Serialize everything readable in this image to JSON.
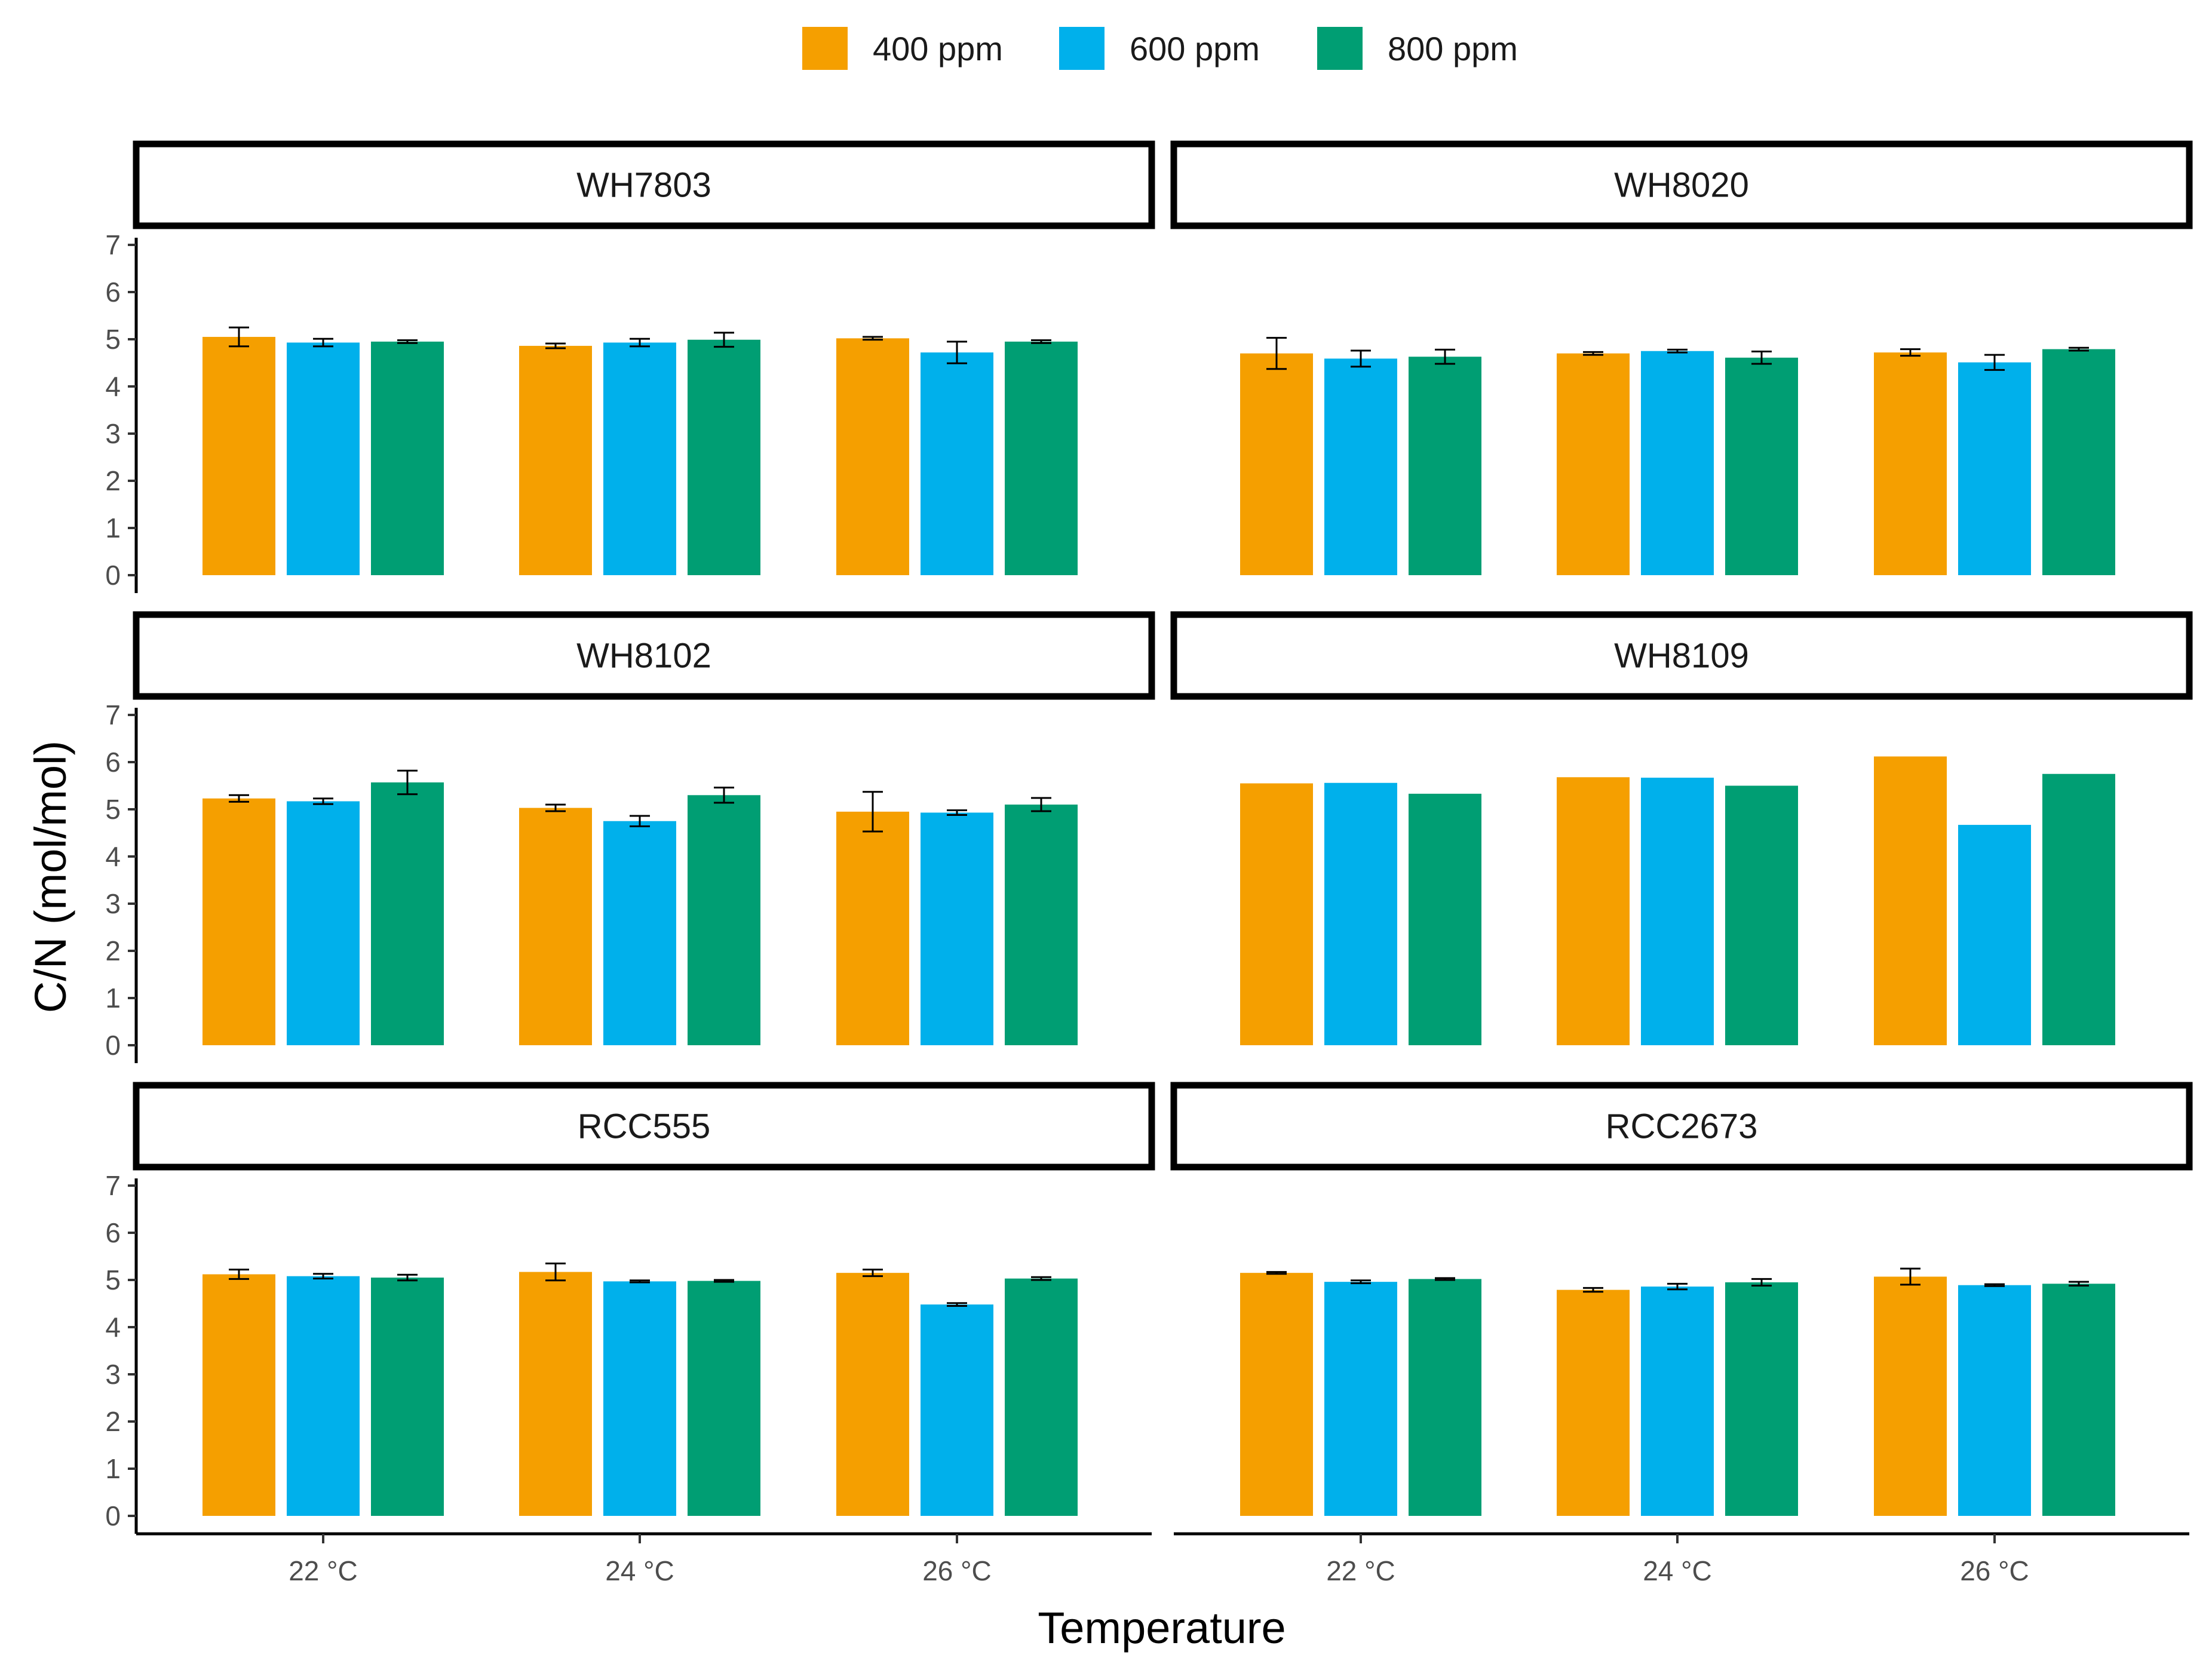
{
  "chart_data": {
    "type": "bar",
    "xlabel": "Temperature",
    "ylabel": "C/N (mol/mol)",
    "ylim": [
      0,
      7
    ],
    "yticks": [
      "0",
      "1",
      "2",
      "3",
      "4",
      "5",
      "6",
      "7"
    ],
    "categories": [
      "22 °C",
      "24 °C",
      "26 °C"
    ],
    "legend": {
      "position": "top",
      "entries": [
        "400 ppm",
        "600 ppm",
        "800 ppm"
      ]
    },
    "colors": {
      "400 ppm": "#F59F00",
      "600 ppm": "#00B0EB",
      "800 ppm": "#009E73"
    },
    "facets": [
      {
        "title": "WH7803",
        "series": [
          {
            "name": "400 ppm",
            "values": [
              5.05,
              4.86,
              5.02
            ],
            "errors": [
              0.2,
              0.05,
              0.03
            ]
          },
          {
            "name": "600 ppm",
            "values": [
              4.93,
              4.93,
              4.72
            ],
            "errors": [
              0.08,
              0.08,
              0.23
            ]
          },
          {
            "name": "800 ppm",
            "values": [
              4.95,
              4.99,
              4.95
            ],
            "errors": [
              0.03,
              0.15,
              0.03
            ]
          }
        ]
      },
      {
        "title": "WH8020",
        "series": [
          {
            "name": "400 ppm",
            "values": [
              4.7,
              4.7,
              4.72
            ],
            "errors": [
              0.33,
              0.03,
              0.07
            ]
          },
          {
            "name": "600 ppm",
            "values": [
              4.59,
              4.75,
              4.51
            ],
            "errors": [
              0.17,
              0.03,
              0.16
            ]
          },
          {
            "name": "800 ppm",
            "values": [
              4.63,
              4.61,
              4.79
            ],
            "errors": [
              0.15,
              0.13,
              0.03
            ]
          }
        ]
      },
      {
        "title": "WH8102",
        "series": [
          {
            "name": "400 ppm",
            "values": [
              5.23,
              5.03,
              4.95
            ],
            "errors": [
              0.07,
              0.07,
              0.42
            ]
          },
          {
            "name": "600 ppm",
            "values": [
              5.17,
              4.75,
              4.93
            ],
            "errors": [
              0.06,
              0.11,
              0.05
            ]
          },
          {
            "name": "800 ppm",
            "values": [
              5.57,
              5.3,
              5.1
            ],
            "errors": [
              0.25,
              0.16,
              0.14
            ]
          }
        ]
      },
      {
        "title": "WH8109",
        "series": [
          {
            "name": "400 ppm",
            "values": [
              5.55,
              5.68,
              6.12
            ],
            "errors": [
              0,
              0,
              0
            ]
          },
          {
            "name": "600 ppm",
            "values": [
              5.56,
              5.67,
              4.67
            ],
            "errors": [
              0,
              0,
              0
            ]
          },
          {
            "name": "800 ppm",
            "values": [
              5.33,
              5.5,
              5.75
            ],
            "errors": [
              0,
              0,
              0
            ]
          }
        ]
      },
      {
        "title": "RCC555",
        "series": [
          {
            "name": "400 ppm",
            "values": [
              5.12,
              5.17,
              5.15
            ],
            "errors": [
              0.1,
              0.18,
              0.07
            ]
          },
          {
            "name": "600 ppm",
            "values": [
              5.08,
              4.97,
              4.48
            ],
            "errors": [
              0.05,
              0.02,
              0.03
            ]
          },
          {
            "name": "800 ppm",
            "values": [
              5.05,
              4.98,
              5.03
            ],
            "errors": [
              0.06,
              0.02,
              0.03
            ]
          }
        ]
      },
      {
        "title": "RCC2673",
        "series": [
          {
            "name": "400 ppm",
            "values": [
              5.15,
              4.79,
              5.07
            ],
            "errors": [
              0.02,
              0.04,
              0.17
            ]
          },
          {
            "name": "600 ppm",
            "values": [
              4.96,
              4.86,
              4.89
            ],
            "errors": [
              0.03,
              0.06,
              0.02
            ]
          },
          {
            "name": "800 ppm",
            "values": [
              5.02,
              4.95,
              4.92
            ],
            "errors": [
              0.02,
              0.07,
              0.04
            ]
          }
        ]
      }
    ]
  }
}
